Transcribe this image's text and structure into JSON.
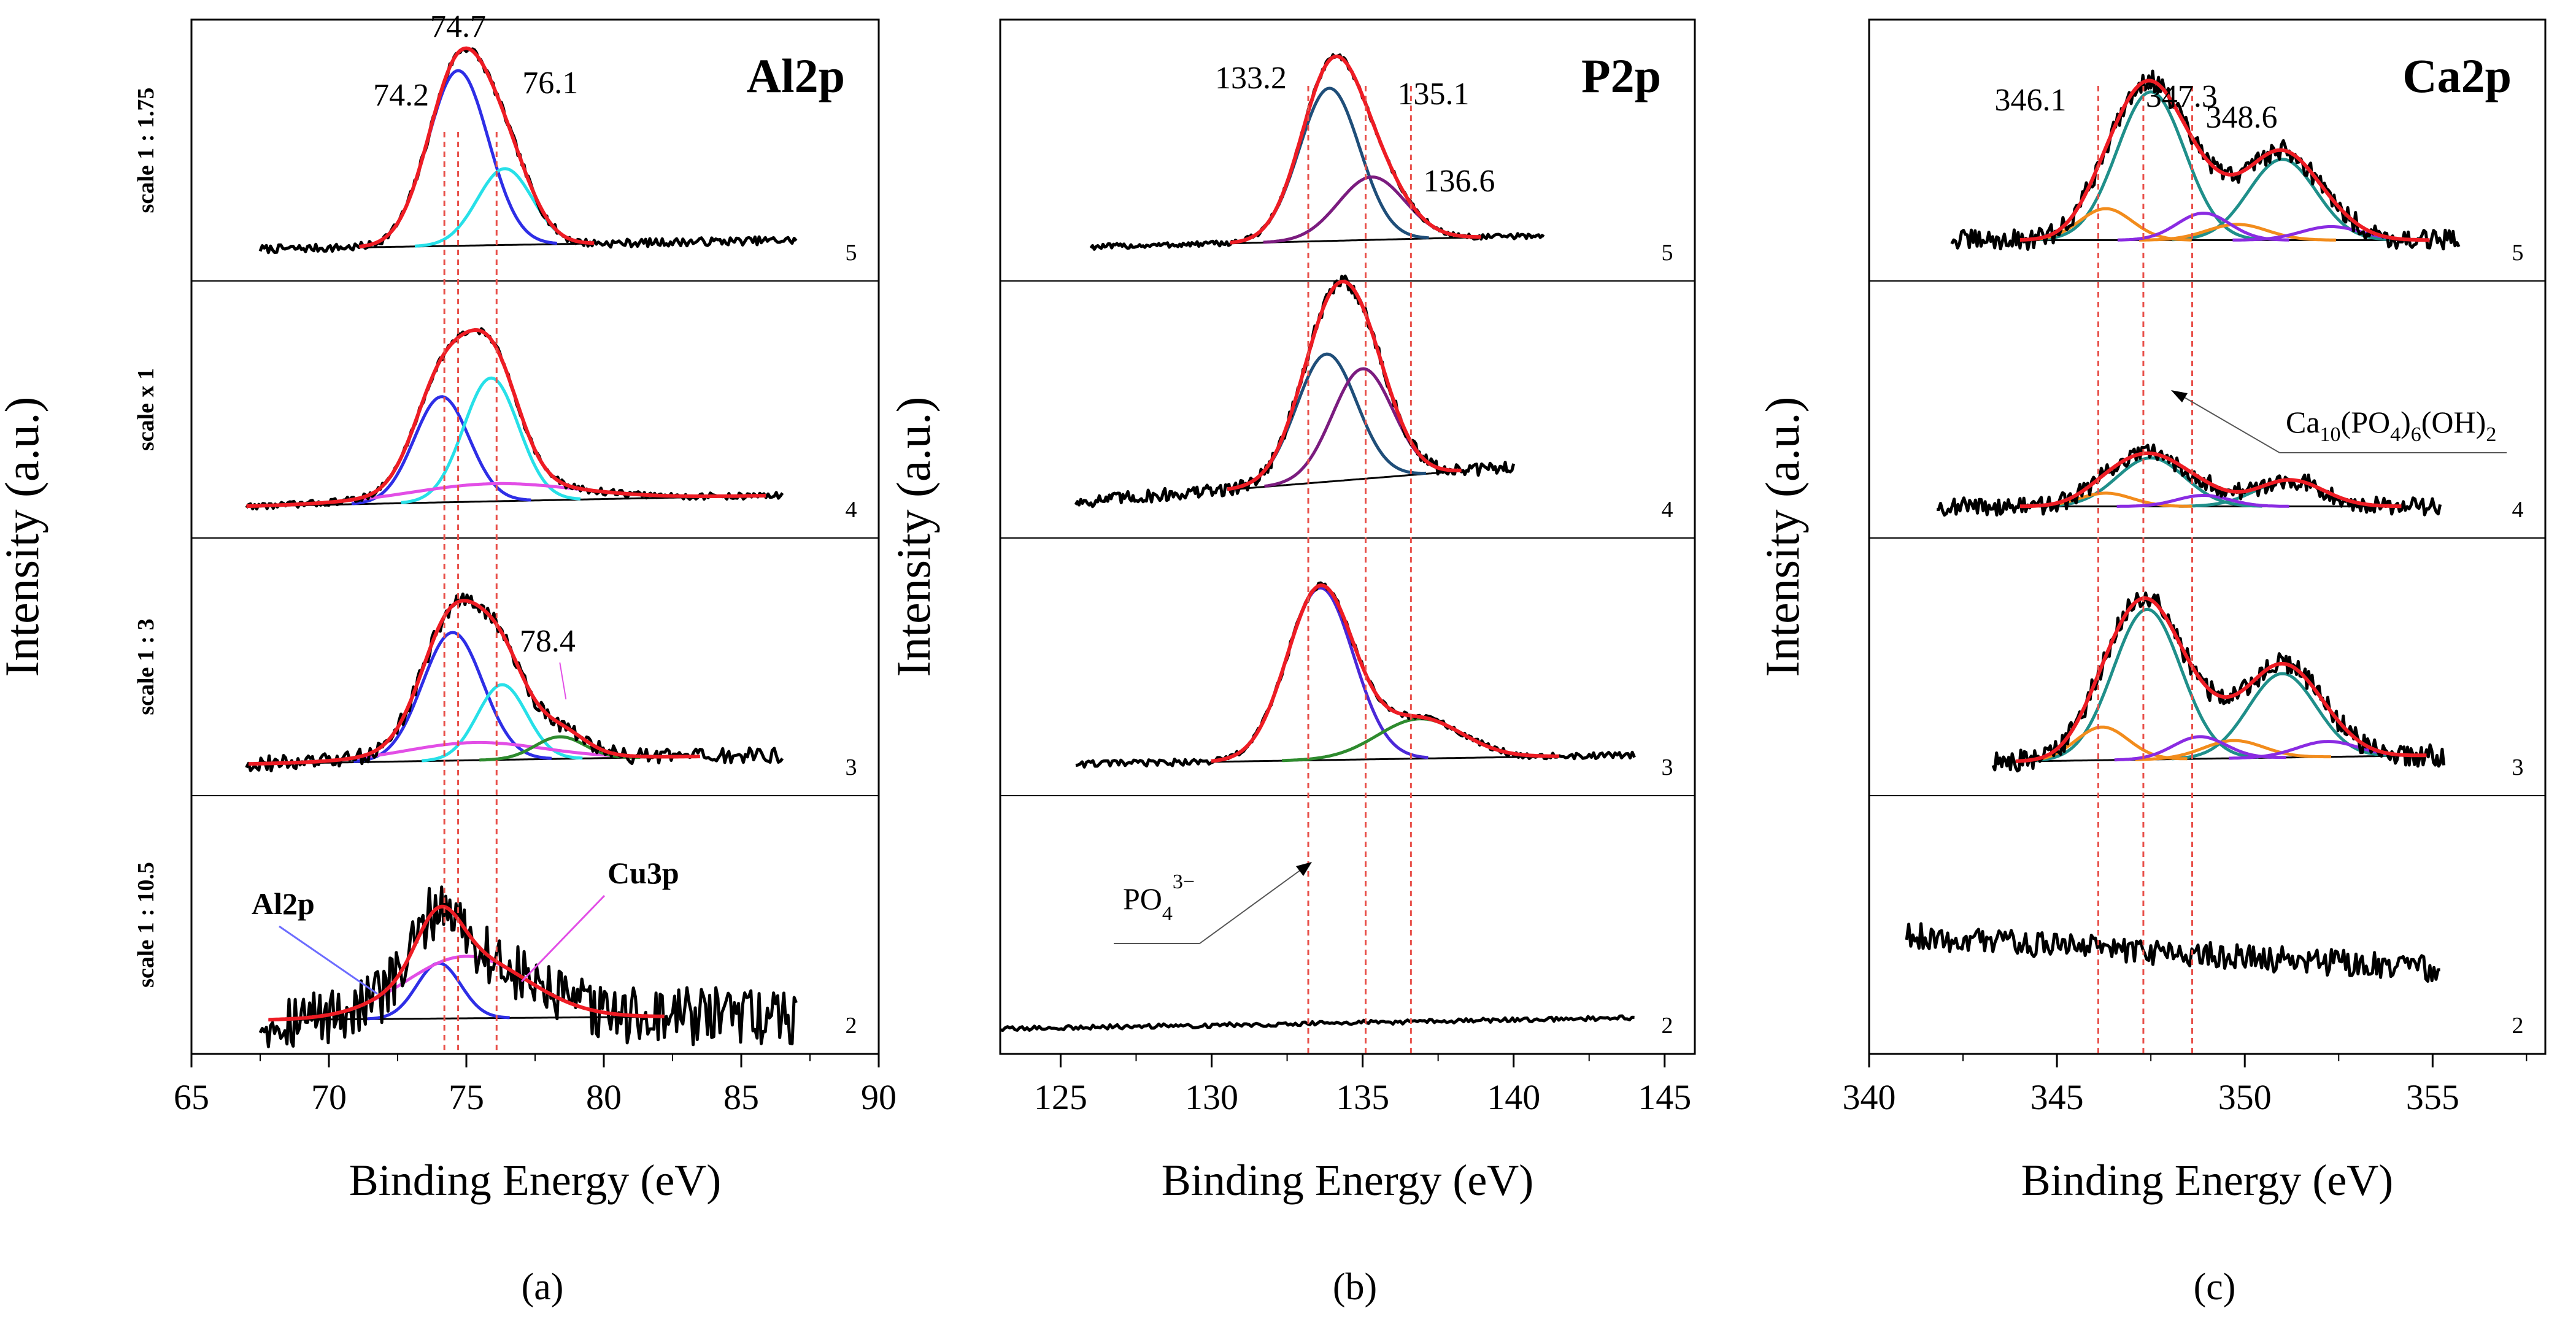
{
  "figure": {
    "y_axis_label": "Intensity (a.u.)",
    "x_axis_label": "Binding Energy (eV)",
    "panel_tags": [
      "(a)",
      "(b)",
      "(c)"
    ]
  },
  "chart_data": [
    {
      "type": "line",
      "panel_label": "(a)",
      "title": "Al2p",
      "xlabel": "Binding Energy (eV)",
      "ylabel": "Intensity (a.u.)",
      "xlim": [
        65,
        90
      ],
      "x_ticks": [
        65,
        70,
        75,
        80,
        85,
        90
      ],
      "reference_lines": [
        74.2,
        74.7,
        76.1
      ],
      "rows": [
        {
          "sample": "5",
          "scale": "scale 1 : 1.75",
          "x_range": [
            67.5,
            87
          ],
          "noise": 0.018,
          "background": [
            0.06,
            0.1
          ],
          "components": [
            {
              "center": 74.7,
              "amp": 0.78,
              "width": 1.1,
              "color": "#2e2ee6"
            },
            {
              "center": 76.4,
              "amp": 0.34,
              "width": 1.0,
              "color": "#27e0e8"
            }
          ]
        },
        {
          "sample": "4",
          "scale": "scale x 1",
          "x_range": [
            67,
            86.5
          ],
          "noise": 0.015,
          "background": [
            0.06,
            0.11
          ],
          "components": [
            {
              "center": 74.1,
              "amp": 0.48,
              "width": 1.0,
              "color": "#2e2ee6"
            },
            {
              "center": 75.9,
              "amp": 0.56,
              "width": 1.0,
              "color": "#27e0e8"
            },
            {
              "center": 76.0,
              "amp": 0.08,
              "width": 3.0,
              "color": "#e24ee6"
            }
          ]
        },
        {
          "sample": "3",
          "scale": "scale 1 : 3",
          "x_range": [
            67,
            86.5
          ],
          "noise": 0.035,
          "background": [
            0.06,
            0.1
          ],
          "components": [
            {
              "center": 74.5,
              "amp": 0.58,
              "width": 1.1,
              "color": "#2e2ee6"
            },
            {
              "center": 76.3,
              "amp": 0.34,
              "width": 0.9,
              "color": "#27e0e8"
            },
            {
              "center": 75.3,
              "amp": 0.08,
              "width": 2.5,
              "color": "#e24ee6"
            },
            {
              "center": 78.4,
              "amp": 0.1,
              "width": 0.9,
              "color": "#2e8b2e"
            }
          ]
        },
        {
          "sample": "2",
          "scale": "scale 1 : 10.5",
          "x_range": [
            67.5,
            87
          ],
          "noise": 0.13,
          "background": [
            0.07,
            0.09
          ],
          "components": [
            {
              "center": 74.0,
              "amp": 0.25,
              "width": 0.8,
              "color": "#2e2ee6"
            },
            {
              "center": 75.0,
              "amp": 0.28,
              "width": 2.2,
              "color": "#e24ee6"
            }
          ]
        }
      ],
      "annotations": [
        {
          "text": "74.2",
          "x": 74.2,
          "row": 0
        },
        {
          "text": "74.7",
          "x": 74.7,
          "row": 0
        },
        {
          "text": "76.1",
          "x": 76.1,
          "row": 0
        },
        {
          "text": "78.4",
          "x": 78.4,
          "row": 2
        },
        {
          "text": "Al2p",
          "x": 70.3,
          "row": 3
        },
        {
          "text": "Cu3p",
          "x": 79.5,
          "row": 3
        }
      ]
    },
    {
      "type": "line",
      "panel_label": "(b)",
      "title": "P2p",
      "xlabel": "Binding Energy (eV)",
      "ylabel": "Intensity (a.u.)",
      "xlim": [
        123,
        146
      ],
      "x_ticks": [
        125,
        130,
        135,
        140,
        145
      ],
      "reference_lines": [
        133.2,
        135.1,
        136.6
      ],
      "rows": [
        {
          "sample": "5",
          "scale": "",
          "x_range": [
            126,
            141
          ],
          "noise": 0.012,
          "background": [
            0.07,
            0.12
          ],
          "components": [
            {
              "center": 133.9,
              "amp": 0.68,
              "width": 1.0,
              "color": "#1f4e79"
            },
            {
              "center": 135.3,
              "amp": 0.28,
              "width": 1.1,
              "color": "#7b1c7f"
            }
          ]
        },
        {
          "sample": "4",
          "scale": "",
          "x_range": [
            125.5,
            140
          ],
          "noise": 0.03,
          "background": [
            0.08,
            0.24
          ],
          "components": [
            {
              "center": 133.8,
              "amp": 0.58,
              "width": 1.0,
              "color": "#1f4e79"
            },
            {
              "center": 135.0,
              "amp": 0.5,
              "width": 1.0,
              "color": "#7b1c7f"
            }
          ]
        },
        {
          "sample": "3",
          "scale": "",
          "x_range": [
            125.5,
            144
          ],
          "noise": 0.015,
          "background": [
            0.06,
            0.1
          ],
          "components": [
            {
              "center": 133.6,
              "amp": 0.78,
              "width": 1.1,
              "color": "#4b28d8"
            },
            {
              "center": 136.9,
              "amp": 0.18,
              "width": 1.4,
              "color": "#2e8b2e"
            }
          ]
        },
        {
          "sample": "2",
          "scale": "",
          "x_range": [
            123,
            144
          ],
          "noise": 0.01,
          "background": [
            0.03,
            0.08
          ],
          "components": []
        }
      ],
      "annotations": [
        {
          "text": "133.2",
          "x": 133.2,
          "row": 0
        },
        {
          "text": "135.1",
          "x": 135.1,
          "row": 0
        },
        {
          "text": "136.6",
          "x": 136.6,
          "row": 0
        },
        {
          "text": "PO",
          "sub": "4",
          "sup": "3−",
          "x": 127.1,
          "row": 3
        }
      ]
    },
    {
      "type": "line",
      "panel_label": "(c)",
      "title": "Ca2p",
      "xlabel": "Binding Energy (eV)",
      "ylabel": "Intensity (a.u.)",
      "xlim": [
        340,
        358
      ],
      "x_ticks": [
        340,
        345,
        350,
        355
      ],
      "reference_lines": [
        346.1,
        347.3,
        348.6
      ],
      "rows": [
        {
          "sample": "5",
          "scale": "",
          "x_range": [
            342.2,
            355.7
          ],
          "noise": 0.045,
          "background": [
            0.1,
            0.1
          ],
          "components": [
            {
              "center": 347.5,
              "amp": 0.66,
              "width": 0.9,
              "color": "#1f8f8a"
            },
            {
              "center": 351.0,
              "amp": 0.36,
              "width": 0.9,
              "color": "#1f8f8a"
            },
            {
              "center": 346.3,
              "amp": 0.14,
              "width": 0.7,
              "color": "#f28c1c"
            },
            {
              "center": 349.8,
              "amp": 0.07,
              "width": 0.8,
              "color": "#f28c1c"
            },
            {
              "center": 348.9,
              "amp": 0.12,
              "width": 0.7,
              "color": "#8a2be2"
            },
            {
              "center": 352.3,
              "amp": 0.06,
              "width": 0.8,
              "color": "#8a2be2"
            }
          ]
        },
        {
          "sample": "4",
          "scale": "",
          "x_range": [
            341.8,
            355.2
          ],
          "noise": 0.04,
          "background": [
            0.06,
            0.06
          ],
          "components": [
            {
              "center": 347.5,
              "amp": 0.22,
              "width": 0.9,
              "color": "#1f8f8a"
            },
            {
              "center": 351.2,
              "amp": 0.12,
              "width": 0.9,
              "color": "#1f8f8a"
            },
            {
              "center": 346.3,
              "amp": 0.06,
              "width": 0.7,
              "color": "#f28c1c"
            },
            {
              "center": 348.9,
              "amp": 0.05,
              "width": 0.7,
              "color": "#8a2be2"
            }
          ]
        },
        {
          "sample": "3",
          "scale": "",
          "x_range": [
            343.3,
            355.3
          ],
          "noise": 0.05,
          "background": [
            0.07,
            0.1
          ],
          "components": [
            {
              "center": 347.4,
              "amp": 0.68,
              "width": 0.9,
              "color": "#1f8f8a"
            },
            {
              "center": 351.0,
              "amp": 0.38,
              "width": 0.9,
              "color": "#1f8f8a"
            },
            {
              "center": 346.2,
              "amp": 0.15,
              "width": 0.7,
              "color": "#f28c1c"
            },
            {
              "center": 349.7,
              "amp": 0.08,
              "width": 0.8,
              "color": "#f28c1c"
            },
            {
              "center": 348.8,
              "amp": 0.1,
              "width": 0.7,
              "color": "#8a2be2"
            },
            {
              "center": 352.2,
              "amp": 0.07,
              "width": 0.8,
              "color": "#8a2be2"
            }
          ]
        },
        {
          "sample": "2",
          "scale": "",
          "x_range": [
            341,
            355.2
          ],
          "noise": 0.06,
          "background": [
            0.45,
            0.3
          ],
          "components": []
        }
      ],
      "annotations": [
        {
          "text": "346.1",
          "x": 346.1,
          "row": 0
        },
        {
          "text": "347.3",
          "x": 347.3,
          "row": 0
        },
        {
          "text": "348.6",
          "x": 348.6,
          "row": 0
        },
        {
          "text": "Ca",
          "x": 352.4,
          "row": 1,
          "formula": [
            [
              "Ca",
              ""
            ],
            [
              "10",
              "sub"
            ],
            [
              "(PO",
              ""
            ],
            [
              "4",
              "sub"
            ],
            [
              ")",
              ""
            ],
            [
              "6",
              "sub"
            ],
            [
              "(OH)",
              ""
            ],
            [
              "2",
              "sub"
            ]
          ]
        }
      ]
    }
  ],
  "colors": {
    "raw": "#000000",
    "fit": "#ee1c24",
    "background": "#000000",
    "reference_line": "#e8504a",
    "arrow": "#6c6cff"
  }
}
